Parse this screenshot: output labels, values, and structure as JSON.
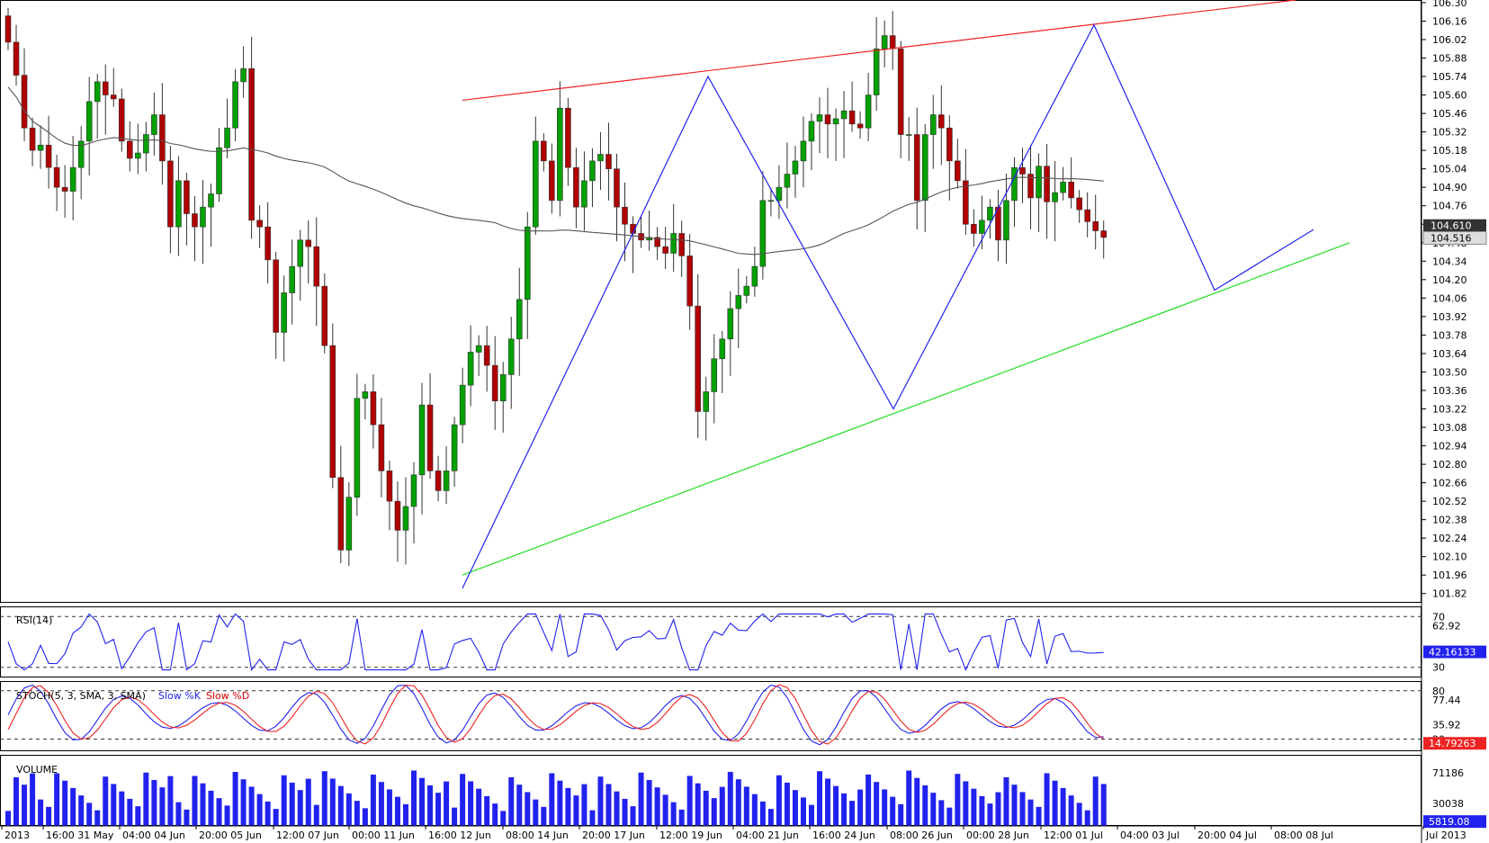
{
  "chart_data": [
    {
      "type": "candlestick",
      "panel": "price",
      "y_ticks": [
        "106.30",
        "106.16",
        "106.02",
        "105.88",
        "105.74",
        "105.60",
        "105.46",
        "105.32",
        "105.18",
        "105.04",
        "104.90",
        "104.76",
        "104.62",
        "104.48",
        "104.34",
        "104.20",
        "104.06",
        "103.92",
        "103.78",
        "103.64",
        "103.50",
        "103.36",
        "103.22",
        "103.08",
        "102.94",
        "102.80",
        "102.66",
        "102.52",
        "102.38",
        "102.24",
        "102.10",
        "101.96",
        "101.82"
      ],
      "ylim": [
        101.75,
        106.32
      ],
      "x_labels": [
        "2013",
        "16:00 31 May",
        "04:00 04 Jun",
        "20:00 05 Jun",
        "12:00 07 Jun",
        "00:00 11 Jun",
        "16:00 12 Jun",
        "08:00 14 Jun",
        "20:00 17 Jun",
        "12:00 19 Jun",
        "04:00 21 Jun",
        "16:00 24 Jun",
        "08:00 26 Jun",
        "00:00 28 Jun",
        "12:00 01 Jul",
        "04:00 03 Jul",
        "20:00 04 Jul",
        "08:00 08 Jul",
        "Jul 2013"
      ],
      "last_price_labels": [
        "104.610",
        "104.516"
      ],
      "colors": {
        "up": "#00a000",
        "down": "#b00000",
        "ma": "#555555",
        "zigzag": "#2222ee",
        "resistance": "#ee2222",
        "support": "#22dd22"
      },
      "close": [
        106.0,
        105.75,
        105.35,
        105.18,
        105.22,
        105.05,
        104.9,
        104.87,
        105.05,
        105.25,
        105.55,
        105.7,
        105.6,
        105.57,
        105.25,
        105.12,
        105.16,
        105.3,
        105.45,
        105.1,
        104.6,
        104.95,
        104.7,
        104.6,
        104.75,
        104.85,
        105.2,
        105.35,
        105.7,
        105.8,
        104.65,
        104.6,
        104.35,
        103.8,
        104.1,
        104.3,
        104.5,
        104.45,
        104.15,
        103.7,
        102.7,
        102.15,
        102.55,
        103.3,
        103.35,
        103.1,
        102.75,
        102.52,
        102.3,
        102.48,
        102.72,
        103.25,
        102.75,
        102.6,
        102.75,
        103.1,
        103.4,
        103.65,
        103.7,
        103.55,
        103.28,
        103.48,
        103.75,
        104.05,
        104.6,
        105.25,
        105.1,
        104.8,
        105.5,
        105.05,
        104.75,
        104.95,
        105.1,
        105.15,
        105.04,
        104.75,
        104.62,
        104.55,
        104.5,
        104.52,
        104.45,
        104.4,
        104.55,
        104.38,
        104.0,
        103.2,
        103.35,
        103.6,
        103.75,
        103.98,
        104.08,
        104.15,
        104.3,
        104.8,
        104.8,
        104.9,
        105.0,
        105.1,
        105.25,
        105.4,
        105.45,
        105.38,
        105.42,
        105.48,
        105.38,
        105.35,
        105.6,
        105.95,
        106.05,
        105.95,
        105.3,
        105.3,
        104.8,
        105.3,
        105.45,
        105.35,
        105.1,
        104.95,
        104.62,
        104.55,
        104.65,
        104.75,
        104.5,
        104.8,
        105.05,
        105.0,
        104.82,
        105.06,
        104.79,
        104.86,
        104.94,
        104.82,
        104.73,
        104.64,
        104.57,
        104.52
      ],
      "rsi14": {
        "value": "42.16133",
        "levels": [
          30,
          70
        ],
        "axis_labels": [
          "70",
          "62.92",
          "30"
        ]
      },
      "stochastic": {
        "params": "5, 3, SMA, 3, SMA",
        "k_label": "Slow %K",
        "d_label": "Slow %D",
        "slow_d": "14.79263",
        "levels": [
          20,
          80
        ],
        "axis_labels": [
          "80",
          "77.44",
          "35.92",
          "20"
        ]
      },
      "volume": {
        "last": "5819.08",
        "axis_labels": [
          "71186",
          "30038"
        ]
      }
    }
  ],
  "panels": {
    "rsi_title": "RSI(14)",
    "stoch_title": "STOCH(5, 3, SMA, 3, SMA)",
    "stoch_k": "Slow %K",
    "stoch_d": "Slow %D",
    "volume_title": "VOLUME"
  }
}
